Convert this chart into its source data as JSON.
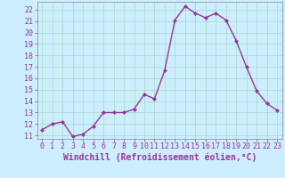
{
  "x": [
    0,
    1,
    2,
    3,
    4,
    5,
    6,
    7,
    8,
    9,
    10,
    11,
    12,
    13,
    14,
    15,
    16,
    17,
    18,
    19,
    20,
    21,
    22,
    23
  ],
  "y": [
    11.5,
    12.0,
    12.2,
    10.9,
    11.1,
    11.8,
    13.0,
    13.0,
    13.0,
    13.3,
    14.6,
    14.2,
    16.7,
    21.1,
    22.3,
    21.7,
    21.3,
    21.7,
    21.1,
    19.3,
    17.0,
    14.9,
    13.8,
    13.2
  ],
  "line_color": "#993399",
  "marker": "D",
  "marker_size": 2.0,
  "line_width": 1.0,
  "bg_color": "#cceeff",
  "grid_color": "#aaddcc",
  "xlabel": "Windchill (Refroidissement éolien,°C)",
  "xlabel_color": "#993399",
  "tick_color": "#993399",
  "ylim": [
    10.7,
    22.7
  ],
  "yticks": [
    11,
    12,
    13,
    14,
    15,
    16,
    17,
    18,
    19,
    20,
    21,
    22
  ],
  "xlim": [
    -0.5,
    23.5
  ],
  "xticks": [
    0,
    1,
    2,
    3,
    4,
    5,
    6,
    7,
    8,
    9,
    10,
    11,
    12,
    13,
    14,
    15,
    16,
    17,
    18,
    19,
    20,
    21,
    22,
    23
  ],
  "tick_fontsize": 6,
  "xlabel_fontsize": 7
}
